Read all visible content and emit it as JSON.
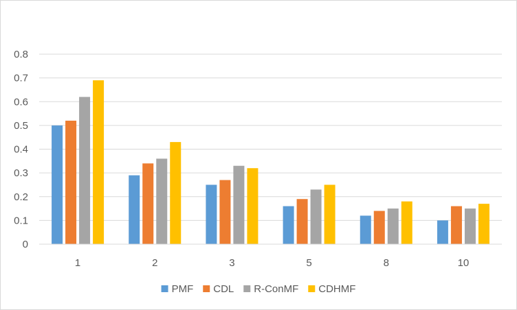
{
  "chart_data": {
    "type": "bar",
    "title": "",
    "xlabel": "",
    "ylabel": "",
    "categories": [
      "1",
      "2",
      "3",
      "5",
      "8",
      "10"
    ],
    "series": [
      {
        "name": "PMF",
        "color": "#5b9bd5",
        "values": [
          0.5,
          0.29,
          0.25,
          0.16,
          0.12,
          0.1
        ]
      },
      {
        "name": "CDL",
        "color": "#ed7d31",
        "values": [
          0.52,
          0.34,
          0.27,
          0.19,
          0.14,
          0.16
        ]
      },
      {
        "name": "R-ConMF",
        "color": "#a5a5a5",
        "values": [
          0.62,
          0.36,
          0.33,
          0.23,
          0.15,
          0.15
        ]
      },
      {
        "name": "CDHMF",
        "color": "#ffc000",
        "values": [
          0.69,
          0.43,
          0.32,
          0.25,
          0.18,
          0.17
        ]
      }
    ],
    "ylim": [
      0,
      0.8
    ],
    "yticks": [
      "0",
      "0.1",
      "0.2",
      "0.3",
      "0.4",
      "0.5",
      "0.6",
      "0.7",
      "0.8"
    ],
    "grid": true,
    "legend_position": "bottom"
  }
}
